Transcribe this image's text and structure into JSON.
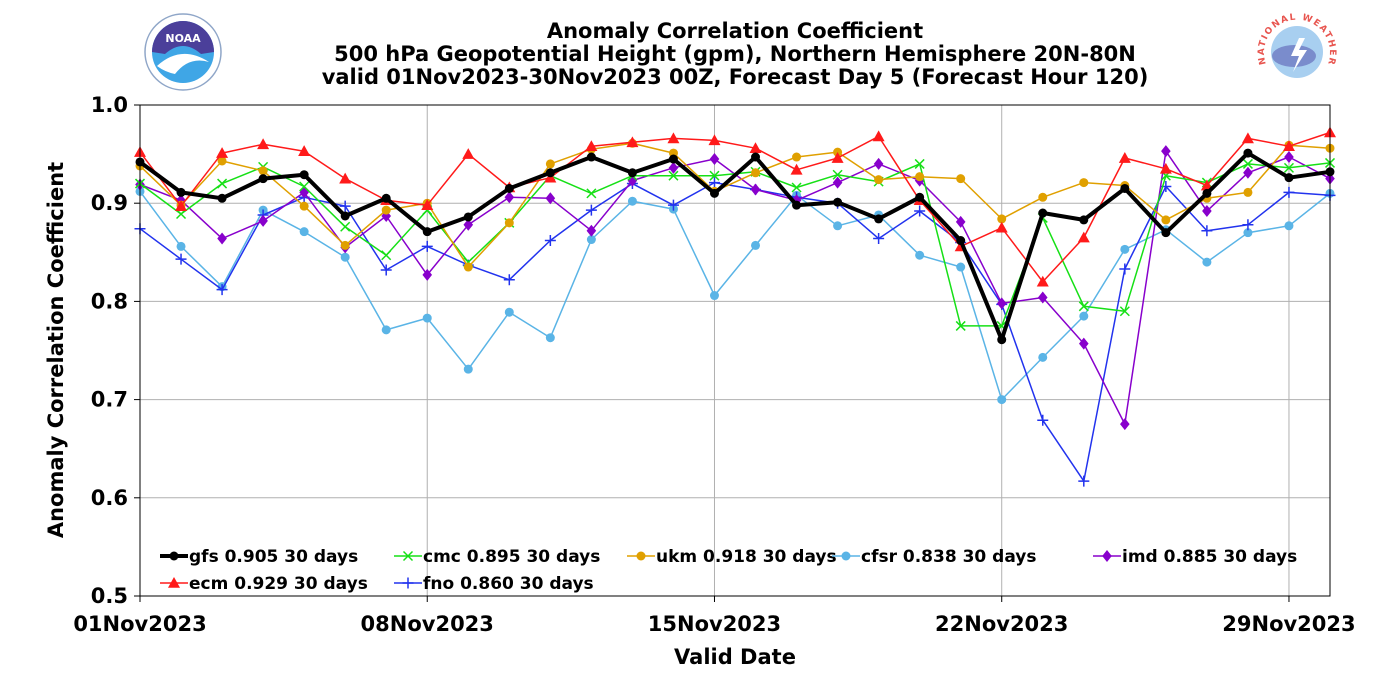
{
  "chart_data": {
    "type": "line",
    "title": "Anomaly Correlation Coefficient",
    "subtitle": "500 hPa Geopotential Height (gpm), Northern Hemisphere 20N-80N",
    "subtitle2": "valid 01Nov2023-30Nov2023 00Z, Forecast Day 5 (Forecast Hour 120)",
    "xlabel": "Valid Date",
    "ylabel": "Anomaly Correlation Coefficient",
    "ylim": [
      0.5,
      1.0
    ],
    "yticks": [
      "0.5",
      "0.6",
      "0.7",
      "0.8",
      "0.9",
      "1.0"
    ],
    "xlim": [
      1,
      30
    ],
    "xticks": [
      {
        "day": 1,
        "label": "01Nov2023"
      },
      {
        "day": 8,
        "label": "08Nov2023"
      },
      {
        "day": 15,
        "label": "15Nov2023"
      },
      {
        "day": 22,
        "label": "22Nov2023"
      },
      {
        "day": 29,
        "label": "29Nov2023"
      }
    ],
    "x": [
      1,
      2,
      3,
      4,
      5,
      6,
      7,
      8,
      9,
      10,
      11,
      12,
      13,
      14,
      15,
      16,
      17,
      18,
      19,
      20,
      21,
      22,
      23,
      24,
      25,
      26,
      27,
      28,
      29,
      30
    ],
    "grid": true,
    "legend_position": "lower-left",
    "series": [
      {
        "name": "gfs",
        "legend": "gfs 0.905 30 days",
        "color": "#000000",
        "marker": "circle",
        "width": 4,
        "values": [
          0.942,
          0.911,
          0.905,
          0.925,
          0.929,
          0.887,
          0.905,
          0.871,
          0.886,
          0.915,
          0.931,
          0.947,
          0.931,
          0.945,
          0.91,
          0.947,
          0.898,
          0.901,
          0.884,
          0.906,
          0.862,
          0.761,
          0.89,
          0.883,
          0.915,
          0.87,
          0.91,
          0.951,
          0.926,
          0.932
        ]
      },
      {
        "name": "ecm",
        "legend": "ecm 0.929 30 days",
        "color": "#ff1a1a",
        "marker": "triangle",
        "width": 1.5,
        "values": [
          0.952,
          0.897,
          0.951,
          0.96,
          0.953,
          0.925,
          0.903,
          0.898,
          0.95,
          0.916,
          0.926,
          0.958,
          0.962,
          0.966,
          0.964,
          0.956,
          0.934,
          0.946,
          0.968,
          0.903,
          0.856,
          0.875,
          0.82,
          0.865,
          0.946,
          0.935,
          0.918,
          0.966,
          0.958,
          0.972
        ]
      },
      {
        "name": "cmc",
        "legend": "cmc 0.895 30 days",
        "color": "#16e016",
        "marker": "x",
        "width": 1.5,
        "values": [
          0.92,
          0.889,
          0.92,
          0.937,
          0.917,
          0.876,
          0.847,
          0.893,
          0.84,
          0.88,
          0.928,
          0.91,
          0.928,
          0.928,
          0.928,
          0.932,
          0.916,
          0.929,
          0.922,
          0.94,
          0.775,
          0.775,
          0.885,
          0.795,
          0.79,
          0.928,
          0.921,
          0.94,
          0.936,
          0.941
        ]
      },
      {
        "name": "fno",
        "legend": "fno 0.860 30 days",
        "color": "#2233ee",
        "marker": "plus",
        "width": 1.5,
        "values": [
          0.874,
          0.843,
          0.812,
          0.888,
          0.906,
          0.897,
          0.832,
          0.856,
          0.837,
          0.822,
          0.862,
          0.893,
          0.92,
          0.898,
          0.921,
          0.914,
          0.906,
          0.9,
          0.864,
          0.892,
          0.86,
          0.797,
          0.679,
          0.617,
          0.833,
          0.917,
          0.872,
          0.878,
          0.911,
          0.908
        ]
      },
      {
        "name": "ukm",
        "legend": "ukm 0.918 30 days",
        "color": "#e0a000",
        "marker": "circle",
        "width": 1.5,
        "values": [
          0.938,
          0.898,
          0.943,
          0.933,
          0.897,
          0.857,
          0.893,
          0.9,
          0.835,
          0.88,
          0.94,
          0.955,
          0.961,
          0.951,
          0.912,
          0.931,
          0.947,
          0.952,
          0.924,
          0.927,
          0.925,
          0.884,
          0.906,
          0.921,
          0.918,
          0.883,
          0.905,
          0.911,
          0.959,
          0.956
        ]
      },
      {
        "name": "cfsr",
        "legend": "cfsr 0.838 30 days",
        "color": "#5ab4e6",
        "marker": "circle",
        "width": 1.5,
        "values": [
          0.912,
          0.856,
          0.815,
          0.893,
          0.871,
          0.845,
          0.771,
          0.783,
          0.731,
          0.789,
          0.763,
          0.863,
          0.902,
          0.894,
          0.806,
          0.857,
          0.908,
          0.877,
          0.888,
          0.847,
          0.835,
          0.7,
          0.743,
          0.785,
          0.853,
          0.873,
          0.84,
          0.87,
          0.877,
          0.91
        ]
      },
      {
        "name": "imd",
        "legend": "imd 0.885 30 days",
        "color": "#8800cc",
        "marker": "diamond",
        "width": 1.5,
        "values": [
          0.919,
          0.903,
          0.864,
          0.882,
          0.911,
          0.855,
          0.887,
          0.827,
          0.878,
          0.906,
          0.905,
          0.872,
          0.923,
          0.936,
          0.945,
          0.914,
          0.903,
          0.921,
          0.94,
          0.923,
          0.881,
          0.798,
          0.804,
          0.757,
          0.675,
          0.953,
          0.892,
          0.931,
          0.947,
          0.925
        ]
      }
    ],
    "legend_order": [
      "gfs",
      "cmc",
      "ukm",
      "cfsr",
      "imd",
      "ecm",
      "fno"
    ],
    "draw_order": [
      "cfsr",
      "fno",
      "imd",
      "cmc",
      "ukm",
      "ecm",
      "gfs"
    ]
  },
  "logos": {
    "left": "NOAA",
    "right": "NATIONAL WEATHER SERVICE"
  }
}
